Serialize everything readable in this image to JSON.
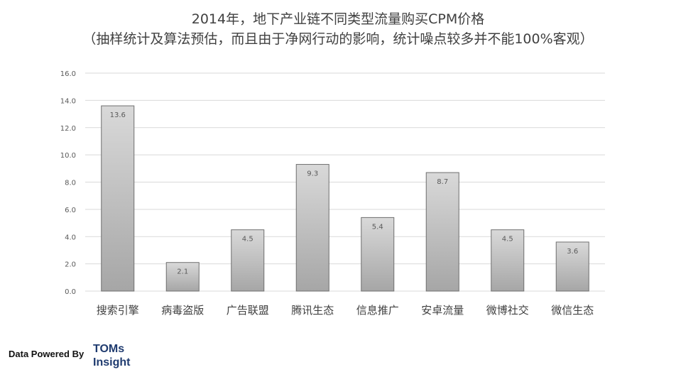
{
  "title_line1": "2014年，地下产业链不同类型流量购买CPM价格",
  "title_line2": "（抽样统计及算法预估，而且由于净网行动的影响，统计噪点较多并不能100%客观）",
  "footer": {
    "label": "Data Powered By",
    "brand_line1": "TOMs",
    "brand_line2": "Insight"
  },
  "chart_data": {
    "type": "bar",
    "categories": [
      "搜索引擎",
      "病毒盗版",
      "广告联盟",
      "腾讯生态",
      "信息推广",
      "安卓流量",
      "微博社交",
      "微信生态"
    ],
    "values": [
      13.6,
      2.1,
      4.5,
      9.3,
      5.4,
      8.7,
      4.5,
      3.6
    ],
    "data_labels": [
      "13.6",
      "2.1",
      "4.5",
      "9.3",
      "5.4",
      "8.7",
      "4.5",
      "3.6"
    ],
    "yticks": [
      "0.0",
      "2.0",
      "4.0",
      "6.0",
      "8.0",
      "10.0",
      "12.0",
      "14.0",
      "16.0"
    ],
    "ylim": [
      0,
      16
    ],
    "grid": true,
    "colors": {
      "bar_top": "#d9d9d9",
      "bar_bottom": "#a6a6a6",
      "bar_edge": "#6f6f6f",
      "grid": "#d9d9d9"
    }
  }
}
